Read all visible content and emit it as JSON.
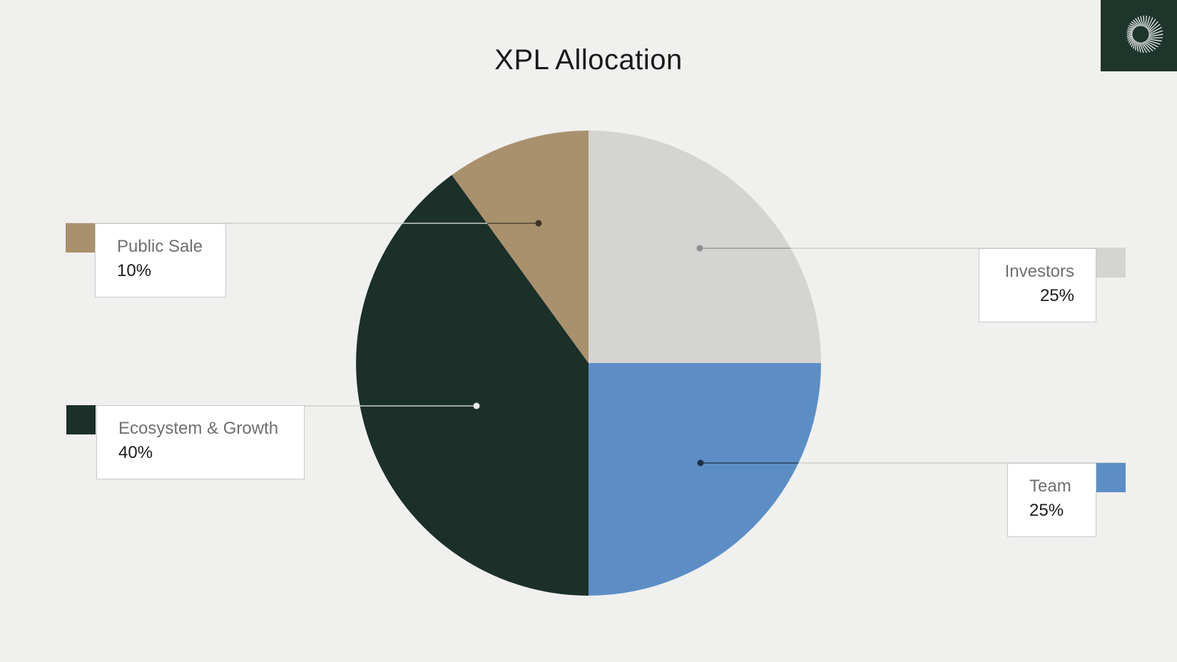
{
  "page": {
    "background_color": "#F0F0EE"
  },
  "header": {
    "title": "XPL Allocation"
  },
  "brand_logo": {
    "icon": "spiral-sunburst-logo",
    "background_color": "#1E352C",
    "glyph_color": "#FFFFFF"
  },
  "chart_data": {
    "type": "pie",
    "title": "XPL Allocation",
    "direction": "clockwise",
    "start_angle_deg": 0,
    "legend_position": "callout-cards",
    "segments": [
      {
        "label": "Investors",
        "value": 25,
        "value_label": "25%",
        "color": "#D4D4D2",
        "callout_side": "right"
      },
      {
        "label": "Team",
        "value": 25,
        "value_label": "25%",
        "color": "#5C8EC5",
        "callout_side": "right"
      },
      {
        "label": "Ecosystem & Growth",
        "value": 40,
        "value_label": "40%",
        "color": "#1B3029",
        "callout_side": "left"
      },
      {
        "label": "Public Sale",
        "value": 10,
        "value_label": "10%",
        "color": "#A9916E",
        "callout_side": "left"
      }
    ]
  }
}
